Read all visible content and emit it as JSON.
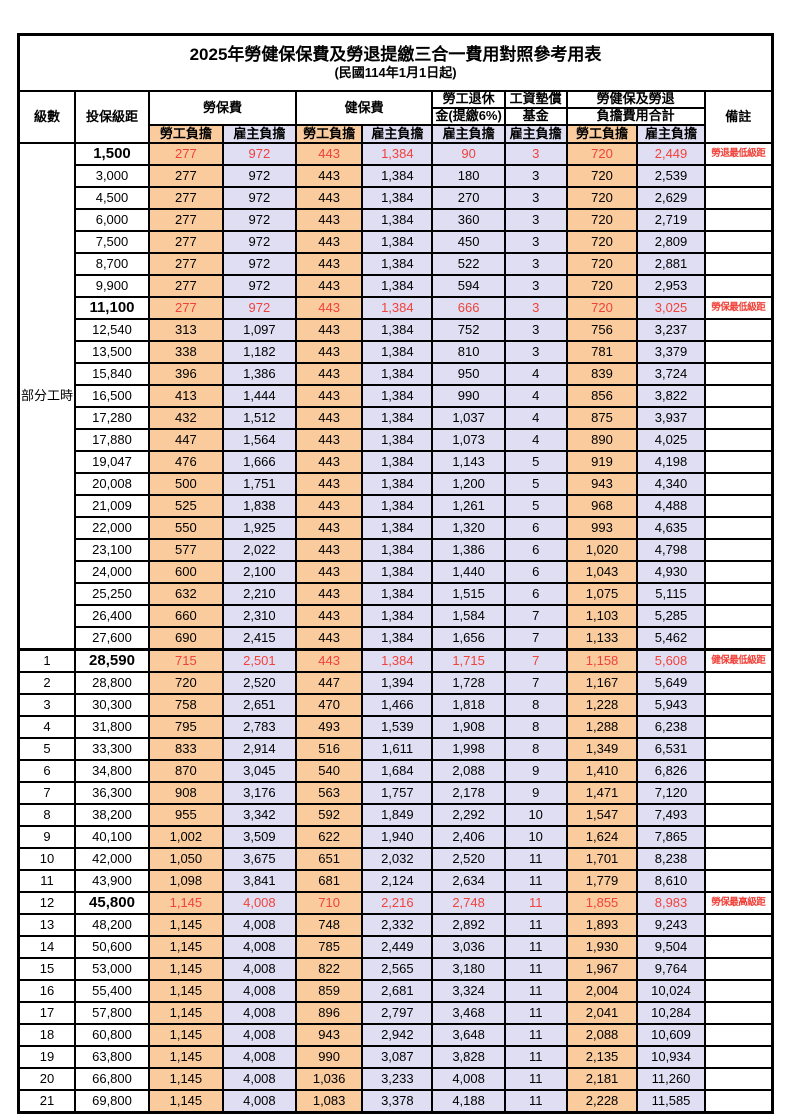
{
  "title": "2025年勞健保保費及勞退提繳三合一費用對照參考用表",
  "subtitle": "(民國114年1月1日起)",
  "header": {
    "level": "級數",
    "bracket": "投保級距",
    "labor_insurance": "勞保費",
    "health_insurance": "健保費",
    "pension_line1": "勞工退休",
    "pension_line2": "金(提繳6%)",
    "wage_fund_line1": "工資墊償",
    "wage_fund_line2": "基金",
    "total_line1": "勞健保及勞退",
    "total_line2": "負擔費用合計",
    "remark": "備註",
    "employee": "勞工負擔",
    "employer": "雇主負擔"
  },
  "part_time_label": "部分工時",
  "part_time_rowspan": 23,
  "colors": {
    "employee_bg": "#F9CB9D",
    "employer_bg": "#E0DEF3",
    "highlight_red": "#F0423A",
    "border": "#000000"
  },
  "rows": [
    {
      "level": "",
      "bracket": "1,500",
      "values": [
        "277",
        "972",
        "443",
        "1,384",
        "90",
        "3",
        "720",
        "2,449"
      ],
      "remark": "勞退最低級距",
      "highlight": true,
      "section_start": false
    },
    {
      "level": "",
      "bracket": "3,000",
      "values": [
        "277",
        "972",
        "443",
        "1,384",
        "180",
        "3",
        "720",
        "2,539"
      ],
      "remark": "",
      "highlight": false,
      "section_start": false
    },
    {
      "level": "",
      "bracket": "4,500",
      "values": [
        "277",
        "972",
        "443",
        "1,384",
        "270",
        "3",
        "720",
        "2,629"
      ],
      "remark": "",
      "highlight": false,
      "section_start": false
    },
    {
      "level": "",
      "bracket": "6,000",
      "values": [
        "277",
        "972",
        "443",
        "1,384",
        "360",
        "3",
        "720",
        "2,719"
      ],
      "remark": "",
      "highlight": false,
      "section_start": false
    },
    {
      "level": "",
      "bracket": "7,500",
      "values": [
        "277",
        "972",
        "443",
        "1,384",
        "450",
        "3",
        "720",
        "2,809"
      ],
      "remark": "",
      "highlight": false,
      "section_start": false
    },
    {
      "level": "",
      "bracket": "8,700",
      "values": [
        "277",
        "972",
        "443",
        "1,384",
        "522",
        "3",
        "720",
        "2,881"
      ],
      "remark": "",
      "highlight": false,
      "section_start": false
    },
    {
      "level": "",
      "bracket": "9,900",
      "values": [
        "277",
        "972",
        "443",
        "1,384",
        "594",
        "3",
        "720",
        "2,953"
      ],
      "remark": "",
      "highlight": false,
      "section_start": false
    },
    {
      "level": "",
      "bracket": "11,100",
      "values": [
        "277",
        "972",
        "443",
        "1,384",
        "666",
        "3",
        "720",
        "3,025"
      ],
      "remark": "勞保最低級距",
      "highlight": true,
      "section_start": false
    },
    {
      "level": "",
      "bracket": "12,540",
      "values": [
        "313",
        "1,097",
        "443",
        "1,384",
        "752",
        "3",
        "756",
        "3,237"
      ],
      "remark": "",
      "highlight": false,
      "section_start": false
    },
    {
      "level": "",
      "bracket": "13,500",
      "values": [
        "338",
        "1,182",
        "443",
        "1,384",
        "810",
        "3",
        "781",
        "3,379"
      ],
      "remark": "",
      "highlight": false,
      "section_start": false
    },
    {
      "level": "",
      "bracket": "15,840",
      "values": [
        "396",
        "1,386",
        "443",
        "1,384",
        "950",
        "4",
        "839",
        "3,724"
      ],
      "remark": "",
      "highlight": false,
      "section_start": false
    },
    {
      "level": "",
      "bracket": "16,500",
      "values": [
        "413",
        "1,444",
        "443",
        "1,384",
        "990",
        "4",
        "856",
        "3,822"
      ],
      "remark": "",
      "highlight": false,
      "section_start": false
    },
    {
      "level": "",
      "bracket": "17,280",
      "values": [
        "432",
        "1,512",
        "443",
        "1,384",
        "1,037",
        "4",
        "875",
        "3,937"
      ],
      "remark": "",
      "highlight": false,
      "section_start": false
    },
    {
      "level": "",
      "bracket": "17,880",
      "values": [
        "447",
        "1,564",
        "443",
        "1,384",
        "1,073",
        "4",
        "890",
        "4,025"
      ],
      "remark": "",
      "highlight": false,
      "section_start": false
    },
    {
      "level": "",
      "bracket": "19,047",
      "values": [
        "476",
        "1,666",
        "443",
        "1,384",
        "1,143",
        "5",
        "919",
        "4,198"
      ],
      "remark": "",
      "highlight": false,
      "section_start": false
    },
    {
      "level": "",
      "bracket": "20,008",
      "values": [
        "500",
        "1,751",
        "443",
        "1,384",
        "1,200",
        "5",
        "943",
        "4,340"
      ],
      "remark": "",
      "highlight": false,
      "section_start": false
    },
    {
      "level": "",
      "bracket": "21,009",
      "values": [
        "525",
        "1,838",
        "443",
        "1,384",
        "1,261",
        "5",
        "968",
        "4,488"
      ],
      "remark": "",
      "highlight": false,
      "section_start": false
    },
    {
      "level": "",
      "bracket": "22,000",
      "values": [
        "550",
        "1,925",
        "443",
        "1,384",
        "1,320",
        "6",
        "993",
        "4,635"
      ],
      "remark": "",
      "highlight": false,
      "section_start": false
    },
    {
      "level": "",
      "bracket": "23,100",
      "values": [
        "577",
        "2,022",
        "443",
        "1,384",
        "1,386",
        "6",
        "1,020",
        "4,798"
      ],
      "remark": "",
      "highlight": false,
      "section_start": false
    },
    {
      "level": "",
      "bracket": "24,000",
      "values": [
        "600",
        "2,100",
        "443",
        "1,384",
        "1,440",
        "6",
        "1,043",
        "4,930"
      ],
      "remark": "",
      "highlight": false,
      "section_start": false
    },
    {
      "level": "",
      "bracket": "25,250",
      "values": [
        "632",
        "2,210",
        "443",
        "1,384",
        "1,515",
        "6",
        "1,075",
        "5,115"
      ],
      "remark": "",
      "highlight": false,
      "section_start": false
    },
    {
      "level": "",
      "bracket": "26,400",
      "values": [
        "660",
        "2,310",
        "443",
        "1,384",
        "1,584",
        "7",
        "1,103",
        "5,285"
      ],
      "remark": "",
      "highlight": false,
      "section_start": false
    },
    {
      "level": "",
      "bracket": "27,600",
      "values": [
        "690",
        "2,415",
        "443",
        "1,384",
        "1,656",
        "7",
        "1,133",
        "5,462"
      ],
      "remark": "",
      "highlight": false,
      "section_start": false
    },
    {
      "level": "1",
      "bracket": "28,590",
      "values": [
        "715",
        "2,501",
        "443",
        "1,384",
        "1,715",
        "7",
        "1,158",
        "5,608"
      ],
      "remark": "健保最低級距",
      "highlight": true,
      "section_start": true
    },
    {
      "level": "2",
      "bracket": "28,800",
      "values": [
        "720",
        "2,520",
        "447",
        "1,394",
        "1,728",
        "7",
        "1,167",
        "5,649"
      ],
      "remark": "",
      "highlight": false,
      "section_start": false
    },
    {
      "level": "3",
      "bracket": "30,300",
      "values": [
        "758",
        "2,651",
        "470",
        "1,466",
        "1,818",
        "8",
        "1,228",
        "5,943"
      ],
      "remark": "",
      "highlight": false,
      "section_start": false
    },
    {
      "level": "4",
      "bracket": "31,800",
      "values": [
        "795",
        "2,783",
        "493",
        "1,539",
        "1,908",
        "8",
        "1,288",
        "6,238"
      ],
      "remark": "",
      "highlight": false,
      "section_start": false
    },
    {
      "level": "5",
      "bracket": "33,300",
      "values": [
        "833",
        "2,914",
        "516",
        "1,611",
        "1,998",
        "8",
        "1,349",
        "6,531"
      ],
      "remark": "",
      "highlight": false,
      "section_start": false
    },
    {
      "level": "6",
      "bracket": "34,800",
      "values": [
        "870",
        "3,045",
        "540",
        "1,684",
        "2,088",
        "9",
        "1,410",
        "6,826"
      ],
      "remark": "",
      "highlight": false,
      "section_start": false
    },
    {
      "level": "7",
      "bracket": "36,300",
      "values": [
        "908",
        "3,176",
        "563",
        "1,757",
        "2,178",
        "9",
        "1,471",
        "7,120"
      ],
      "remark": "",
      "highlight": false,
      "section_start": false
    },
    {
      "level": "8",
      "bracket": "38,200",
      "values": [
        "955",
        "3,342",
        "592",
        "1,849",
        "2,292",
        "10",
        "1,547",
        "7,493"
      ],
      "remark": "",
      "highlight": false,
      "section_start": false
    },
    {
      "level": "9",
      "bracket": "40,100",
      "values": [
        "1,002",
        "3,509",
        "622",
        "1,940",
        "2,406",
        "10",
        "1,624",
        "7,865"
      ],
      "remark": "",
      "highlight": false,
      "section_start": false
    },
    {
      "level": "10",
      "bracket": "42,000",
      "values": [
        "1,050",
        "3,675",
        "651",
        "2,032",
        "2,520",
        "11",
        "1,701",
        "8,238"
      ],
      "remark": "",
      "highlight": false,
      "section_start": false
    },
    {
      "level": "11",
      "bracket": "43,900",
      "values": [
        "1,098",
        "3,841",
        "681",
        "2,124",
        "2,634",
        "11",
        "1,779",
        "8,610"
      ],
      "remark": "",
      "highlight": false,
      "section_start": false
    },
    {
      "level": "12",
      "bracket": "45,800",
      "values": [
        "1,145",
        "4,008",
        "710",
        "2,216",
        "2,748",
        "11",
        "1,855",
        "8,983"
      ],
      "remark": "勞保最高級距",
      "highlight": true,
      "section_start": false
    },
    {
      "level": "13",
      "bracket": "48,200",
      "values": [
        "1,145",
        "4,008",
        "748",
        "2,332",
        "2,892",
        "11",
        "1,893",
        "9,243"
      ],
      "remark": "",
      "highlight": false,
      "section_start": false
    },
    {
      "level": "14",
      "bracket": "50,600",
      "values": [
        "1,145",
        "4,008",
        "785",
        "2,449",
        "3,036",
        "11",
        "1,930",
        "9,504"
      ],
      "remark": "",
      "highlight": false,
      "section_start": false
    },
    {
      "level": "15",
      "bracket": "53,000",
      "values": [
        "1,145",
        "4,008",
        "822",
        "2,565",
        "3,180",
        "11",
        "1,967",
        "9,764"
      ],
      "remark": "",
      "highlight": false,
      "section_start": false
    },
    {
      "level": "16",
      "bracket": "55,400",
      "values": [
        "1,145",
        "4,008",
        "859",
        "2,681",
        "3,324",
        "11",
        "2,004",
        "10,024"
      ],
      "remark": "",
      "highlight": false,
      "section_start": false
    },
    {
      "level": "17",
      "bracket": "57,800",
      "values": [
        "1,145",
        "4,008",
        "896",
        "2,797",
        "3,468",
        "11",
        "2,041",
        "10,284"
      ],
      "remark": "",
      "highlight": false,
      "section_start": false
    },
    {
      "level": "18",
      "bracket": "60,800",
      "values": [
        "1,145",
        "4,008",
        "943",
        "2,942",
        "3,648",
        "11",
        "2,088",
        "10,609"
      ],
      "remark": "",
      "highlight": false,
      "section_start": false
    },
    {
      "level": "19",
      "bracket": "63,800",
      "values": [
        "1,145",
        "4,008",
        "990",
        "3,087",
        "3,828",
        "11",
        "2,135",
        "10,934"
      ],
      "remark": "",
      "highlight": false,
      "section_start": false
    },
    {
      "level": "20",
      "bracket": "66,800",
      "values": [
        "1,145",
        "4,008",
        "1,036",
        "3,233",
        "4,008",
        "11",
        "2,181",
        "11,260"
      ],
      "remark": "",
      "highlight": false,
      "section_start": false
    },
    {
      "level": "21",
      "bracket": "69,800",
      "values": [
        "1,145",
        "4,008",
        "1,083",
        "3,378",
        "4,188",
        "11",
        "2,228",
        "11,585"
      ],
      "remark": "",
      "highlight": false,
      "section_start": false
    }
  ],
  "value_column_types": [
    "emp",
    "er",
    "emp",
    "er",
    "er",
    "er",
    "emp",
    "er"
  ]
}
